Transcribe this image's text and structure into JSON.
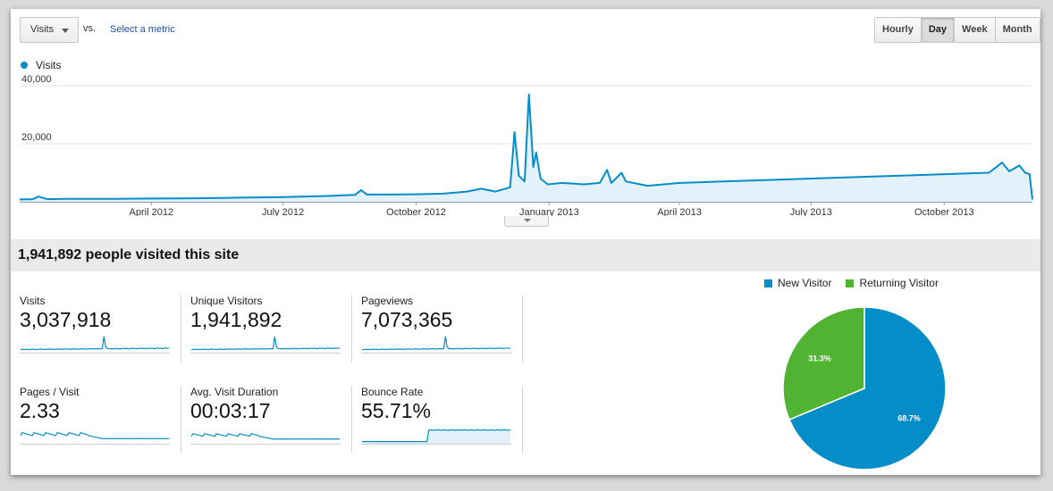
{
  "toolbar": {
    "metric_select_value": "Visits",
    "vs_label": "vs.",
    "select_metric_link": "Select a metric",
    "granularity": [
      "Hourly",
      "Day",
      "Week",
      "Month"
    ],
    "granularity_selected": "Day"
  },
  "chart_data": {
    "type": "area",
    "series": [
      {
        "name": "Visits",
        "color": "#058dc7"
      }
    ],
    "ylabels": [
      "40,000",
      "20,000"
    ],
    "yticks": [
      40000,
      20000
    ],
    "ylim": [
      0,
      40000
    ],
    "xlabels": [
      "April 2012",
      "July 2012",
      "October 2012",
      "January 2013",
      "April 2013",
      "July 2013",
      "October 2013"
    ],
    "x_dates": [
      "2012-04-01",
      "2012-07-01",
      "2012-10-01",
      "2013-01-01",
      "2013-04-01",
      "2013-07-01",
      "2013-10-01"
    ],
    "x_range": [
      "2012-01-01",
      "2013-12-01"
    ],
    "points": [
      [
        "2012-01-01",
        800
      ],
      [
        "2012-01-10",
        900
      ],
      [
        "2012-01-14",
        1800
      ],
      [
        "2012-01-20",
        900
      ],
      [
        "2012-02-01",
        1000
      ],
      [
        "2012-03-01",
        1000
      ],
      [
        "2012-04-01",
        1100
      ],
      [
        "2012-05-01",
        1200
      ],
      [
        "2012-06-01",
        1400
      ],
      [
        "2012-07-01",
        1600
      ],
      [
        "2012-08-01",
        2000
      ],
      [
        "2012-08-20",
        2400
      ],
      [
        "2012-08-24",
        4000
      ],
      [
        "2012-08-28",
        2500
      ],
      [
        "2012-09-15",
        2500
      ],
      [
        "2012-10-01",
        2600
      ],
      [
        "2012-10-20",
        2800
      ],
      [
        "2012-11-05",
        3500
      ],
      [
        "2012-11-15",
        4500
      ],
      [
        "2012-11-25",
        3500
      ],
      [
        "2012-12-05",
        5000
      ],
      [
        "2012-12-08",
        24000
      ],
      [
        "2012-12-11",
        9000
      ],
      [
        "2012-12-15",
        7000
      ],
      [
        "2012-12-18",
        37000
      ],
      [
        "2012-12-21",
        12000
      ],
      [
        "2012-12-23",
        17000
      ],
      [
        "2012-12-26",
        8000
      ],
      [
        "2012-12-31",
        6000
      ],
      [
        "2013-01-10",
        6500
      ],
      [
        "2013-01-25",
        6000
      ],
      [
        "2013-02-05",
        6500
      ],
      [
        "2013-02-10",
        11000
      ],
      [
        "2013-02-13",
        6500
      ],
      [
        "2013-02-20",
        10000
      ],
      [
        "2013-02-23",
        7000
      ],
      [
        "2013-03-10",
        5500
      ],
      [
        "2013-04-01",
        6500
      ],
      [
        "2013-05-01",
        7000
      ],
      [
        "2013-06-01",
        7500
      ],
      [
        "2013-07-01",
        8000
      ],
      [
        "2013-08-01",
        8500
      ],
      [
        "2013-09-01",
        9000
      ],
      [
        "2013-10-01",
        9500
      ],
      [
        "2013-11-01",
        10000
      ],
      [
        "2013-11-10",
        13500
      ],
      [
        "2013-11-15",
        10500
      ],
      [
        "2013-11-22",
        12500
      ],
      [
        "2013-11-26",
        10000
      ],
      [
        "2013-11-29",
        9500
      ],
      [
        "2013-12-01",
        800
      ]
    ]
  },
  "summary": "1,941,892 people visited this site",
  "metrics": [
    {
      "label": "Visits",
      "value": "3,037,918"
    },
    {
      "label": "Unique Visitors",
      "value": "1,941,892"
    },
    {
      "label": "Pageviews",
      "value": "7,073,365"
    },
    {
      "label": "Pages / Visit",
      "value": "2.33"
    },
    {
      "label": "Avg. Visit Duration",
      "value": "00:03:17"
    },
    {
      "label": "Bounce Rate",
      "value": "55.71%"
    }
  ],
  "pie": {
    "slices": [
      {
        "name": "New Visitor",
        "value": 68.7,
        "label": "68.7%",
        "color": "#058dc7"
      },
      {
        "name": "Returning Visitor",
        "value": 31.3,
        "label": "31.3%",
        "color": "#50b432"
      }
    ]
  }
}
